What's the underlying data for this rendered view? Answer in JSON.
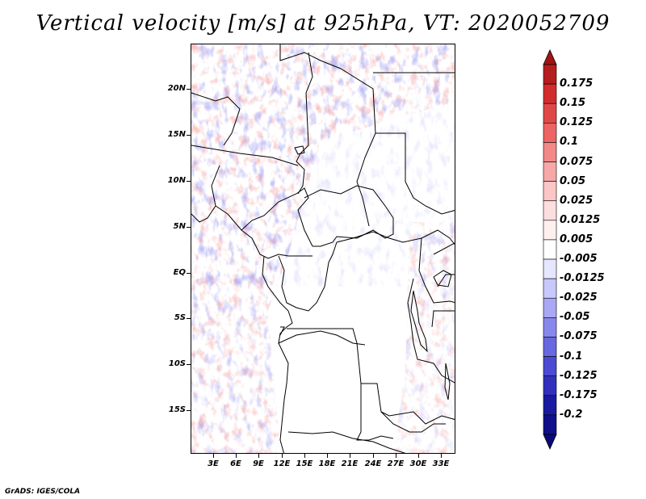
{
  "title": "Vertical velocity [m/s] at 925hPa, VT: 2020052709",
  "footer": "GrADS: IGES/COLA",
  "map": {
    "variable": "Vertical velocity",
    "units": "m/s",
    "level": "925hPa",
    "valid_time": "2020052709",
    "lat_labels": [
      "20N",
      "15N",
      "10N",
      "5N",
      "EQ",
      "5S",
      "10S",
      "15S"
    ],
    "lon_labels": [
      "3E",
      "6E",
      "9E",
      "12E",
      "15E",
      "18E",
      "21E",
      "24E",
      "27E",
      "30E",
      "33E"
    ]
  },
  "colorbar": {
    "labels": [
      "0.175",
      "0.15",
      "0.125",
      "0.1",
      "0.075",
      "0.05",
      "0.025",
      "0.0125",
      "0.005",
      "-0.005",
      "-0.0125",
      "-0.025",
      "-0.05",
      "-0.075",
      "-0.1",
      "-0.125",
      "-0.175",
      "-0.2"
    ],
    "colors": [
      "#b41e1e",
      "#d22d2d",
      "#e04848",
      "#ec6464",
      "#f28888",
      "#f6a8a8",
      "#fac6c6",
      "#fddede",
      "#fff0f0",
      "#ffffff",
      "#e6e6ff",
      "#c8c8fa",
      "#a8a8f4",
      "#8888ec",
      "#6868e0",
      "#4a4ad2",
      "#3030bc",
      "#1a1aa0",
      "#10108a"
    ],
    "top_arrow_color": "#a01414",
    "bottom_arrow_color": "#0a0a78"
  },
  "style": {
    "positive_color": "#e03c3c",
    "negative_color": "#4646dc",
    "border_color": "#000000"
  }
}
